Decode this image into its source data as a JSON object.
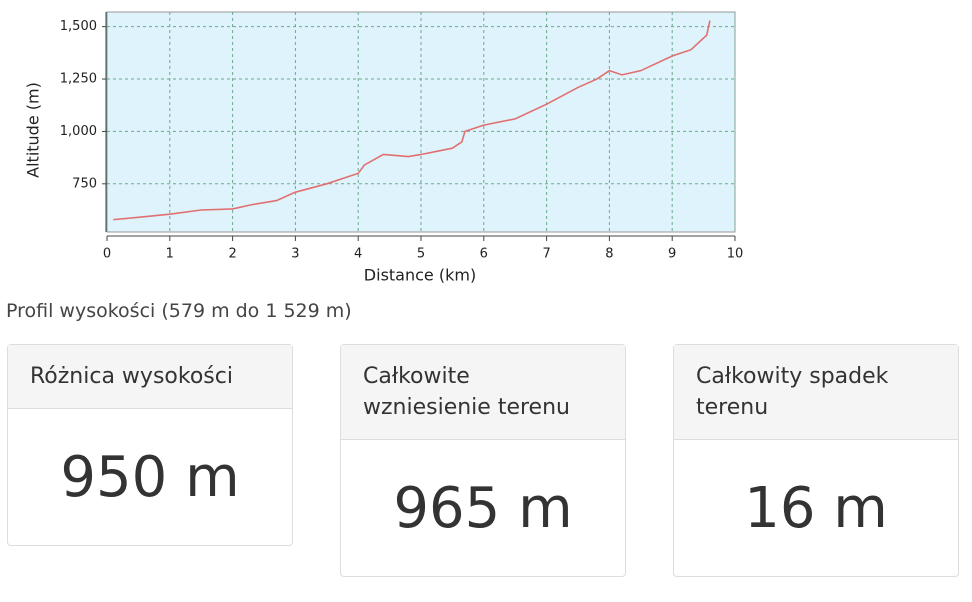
{
  "chart_data": {
    "type": "line",
    "xlabel": "Distance (km)",
    "ylabel": "Altitude (m)",
    "x": [
      0.1,
      0.5,
      1.0,
      1.5,
      2.0,
      2.3,
      2.7,
      3.0,
      3.5,
      3.8,
      4.0,
      4.1,
      4.4,
      4.8,
      5.0,
      5.5,
      5.65,
      5.7,
      6.0,
      6.5,
      7.0,
      7.5,
      7.8,
      8.0,
      8.2,
      8.5,
      9.0,
      9.3,
      9.55,
      9.6
    ],
    "values": [
      579,
      590,
      605,
      625,
      630,
      650,
      670,
      710,
      750,
      780,
      800,
      840,
      890,
      880,
      890,
      920,
      950,
      1000,
      1030,
      1060,
      1130,
      1210,
      1250,
      1290,
      1270,
      1290,
      1360,
      1390,
      1460,
      1529
    ],
    "color": "#e07070",
    "xlim": [
      0,
      10
    ],
    "xticks": [
      0,
      1,
      2,
      3,
      4,
      5,
      6,
      7,
      8,
      9,
      10
    ],
    "ylim": [
      520,
      1570
    ],
    "yticks": [
      750,
      {
        "value": 1000,
        "label": "1,000"
      },
      {
        "value": 1250,
        "label": "1,250"
      },
      {
        "value": 1500,
        "label": "1,500"
      }
    ],
    "grid": true
  },
  "caption": "Profil wysokości (579 m do 1 529 m)",
  "cards": [
    {
      "title": "Różnica wysokości",
      "value": "950 m"
    },
    {
      "title": "Całkowite wzniesienie terenu",
      "value": "965 m"
    },
    {
      "title": "Całkowity spadek terenu",
      "value": "16 m"
    }
  ]
}
